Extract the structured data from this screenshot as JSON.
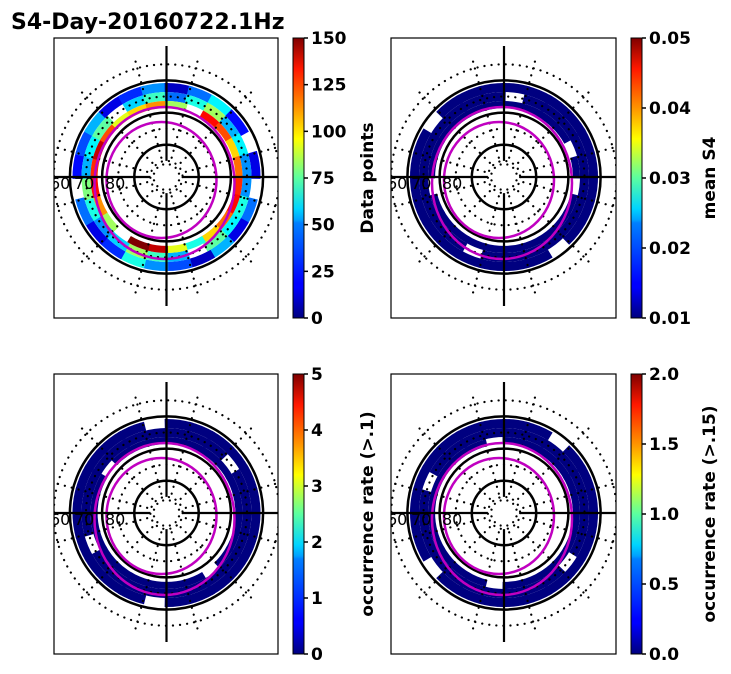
{
  "figure": {
    "title": "S4-Day-20160722.1Hz"
  },
  "chart_data": [
    {
      "type": "heatmap",
      "projection": "polar (magnetic latitude / MLT, north pole at center)",
      "title": "",
      "colorbar": {
        "label": "Data points",
        "range": [
          0,
          150
        ],
        "ticks": [
          "0",
          "25",
          "50",
          "75",
          "100",
          "125",
          "150"
        ],
        "colormap": "jet"
      },
      "latitude_labels": [
        "60",
        "70",
        "80"
      ],
      "latitude_circles_solid": [
        60,
        70,
        80
      ],
      "latitude_circles_dotted": [
        55,
        65,
        75,
        85
      ],
      "oval_boundaries_color": "#c000c0",
      "description": "Ring of bins between ~60 and ~70 deg latitude; most bins 10-60 points, some 100-150 (yellow/orange/red) along inner and outer edges",
      "ring_bins": {
        "outer_band_values": [
          20,
          35,
          15,
          45,
          10,
          30,
          40,
          60,
          25,
          15,
          35,
          50,
          20,
          30,
          45,
          15,
          25,
          40,
          10,
          35,
          55,
          20,
          30,
          15
        ],
        "middle_band_values": [
          40,
          60,
          55,
          70,
          35,
          45,
          65,
          80,
          50,
          40,
          60,
          75,
          45,
          55,
          70,
          40,
          50,
          65,
          35,
          60,
          80,
          45,
          55,
          40
        ],
        "inner_band_values": [
          125,
          130,
          115,
          100,
          60,
          90,
          140,
          150,
          100,
          80,
          110,
          130,
          125,
          140,
          120,
          90,
          100,
          110,
          80,
          95,
          130,
          120,
          100,
          115
        ]
      }
    },
    {
      "type": "heatmap",
      "projection": "polar (magnetic latitude / MLT)",
      "title": "",
      "colorbar": {
        "label": "mean S4",
        "range": [
          0.01,
          0.05
        ],
        "ticks": [
          "0.01",
          "0.02",
          "0.03",
          "0.04",
          "0.05"
        ],
        "colormap": "jet"
      },
      "latitude_labels": [
        "60",
        "70",
        "80"
      ],
      "description": "All occupied bins near minimum (~0.01)",
      "uniform_value": 0.01
    },
    {
      "type": "heatmap",
      "projection": "polar (magnetic latitude / MLT)",
      "title": "",
      "colorbar": {
        "label": "occurrence rate (>.1)",
        "range": [
          0,
          5
        ],
        "ticks": [
          "0",
          "1",
          "2",
          "3",
          "4",
          "5"
        ],
        "colormap": "jet"
      },
      "latitude_labels": [
        "60",
        "70",
        "80"
      ],
      "description": "All occupied bins at 0",
      "uniform_value": 0
    },
    {
      "type": "heatmap",
      "projection": "polar (magnetic latitude / MLT)",
      "title": "",
      "colorbar": {
        "label": "occurrence rate (>.15)",
        "range": [
          0.0,
          2.0
        ],
        "ticks": [
          "0.0",
          "0.5",
          "1.0",
          "1.5",
          "2.0"
        ],
        "colormap": "jet"
      },
      "latitude_labels": [
        "60",
        "70",
        "80"
      ],
      "description": "All occupied bins at 0.0",
      "uniform_value": 0.0
    }
  ]
}
